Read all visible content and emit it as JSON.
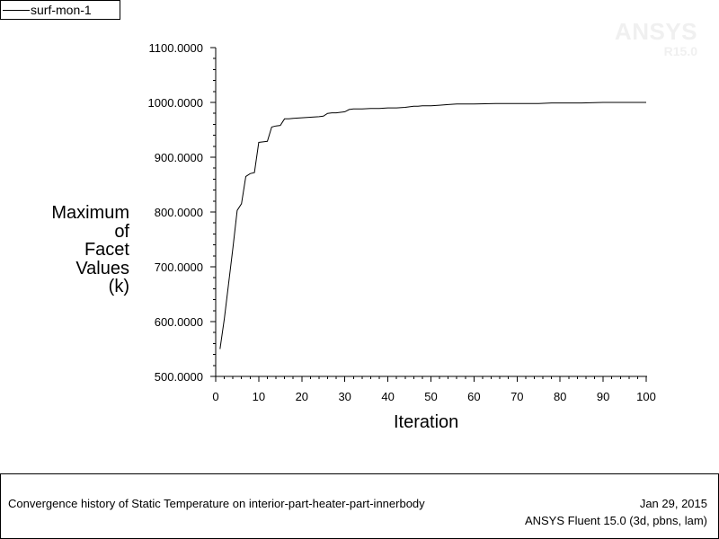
{
  "legend": {
    "label": "surf-mon-1"
  },
  "watermark": {
    "brand": "ANSYS",
    "version": "R15.0"
  },
  "chart_data": {
    "type": "line",
    "xlabel": "Iteration",
    "ylabel_lines": [
      "Maximum",
      "of",
      "Facet",
      "Values",
      "(k)"
    ],
    "xlim": [
      0,
      100
    ],
    "ylim": [
      500,
      1100
    ],
    "xticks": [
      "0",
      "10",
      "20",
      "30",
      "40",
      "50",
      "60",
      "70",
      "80",
      "90",
      "100"
    ],
    "yticks": [
      "500.0000",
      "600.0000",
      "700.0000",
      "800.0000",
      "900.0000",
      "1000.0000",
      "1100.0000"
    ],
    "grid": false,
    "legend_position": "top-left",
    "series": [
      {
        "name": "surf-mon-1",
        "x": [
          1,
          2,
          3,
          4,
          5,
          6,
          7,
          8,
          9,
          10,
          11,
          12,
          13,
          14,
          15,
          16,
          17,
          18,
          20,
          22,
          24,
          25,
          26,
          27,
          28,
          29,
          30,
          31,
          32,
          34,
          36,
          38,
          40,
          42,
          44,
          46,
          47,
          48,
          50,
          52,
          54,
          56,
          58,
          60,
          65,
          70,
          75,
          78,
          80,
          85,
          90,
          95,
          100
        ],
        "y": [
          550,
          605,
          670,
          735,
          803,
          815,
          865,
          870,
          872,
          927,
          928,
          929,
          955,
          957,
          958,
          970,
          970,
          971,
          972,
          973,
          974,
          975,
          980,
          981,
          981,
          982,
          983,
          987,
          988,
          988,
          989,
          989,
          990,
          990,
          991,
          993,
          993,
          994,
          994,
          995,
          996,
          997,
          997,
          997,
          998,
          998,
          998,
          999,
          999,
          999,
          1000,
          1000,
          1000
        ]
      }
    ]
  },
  "footer": {
    "title": "Convergence history of Static Temperature on interior-part-heater-part-innerbody",
    "date": "Jan 29, 2015",
    "version": "ANSYS Fluent 15.0 (3d, pbns, lam)"
  }
}
